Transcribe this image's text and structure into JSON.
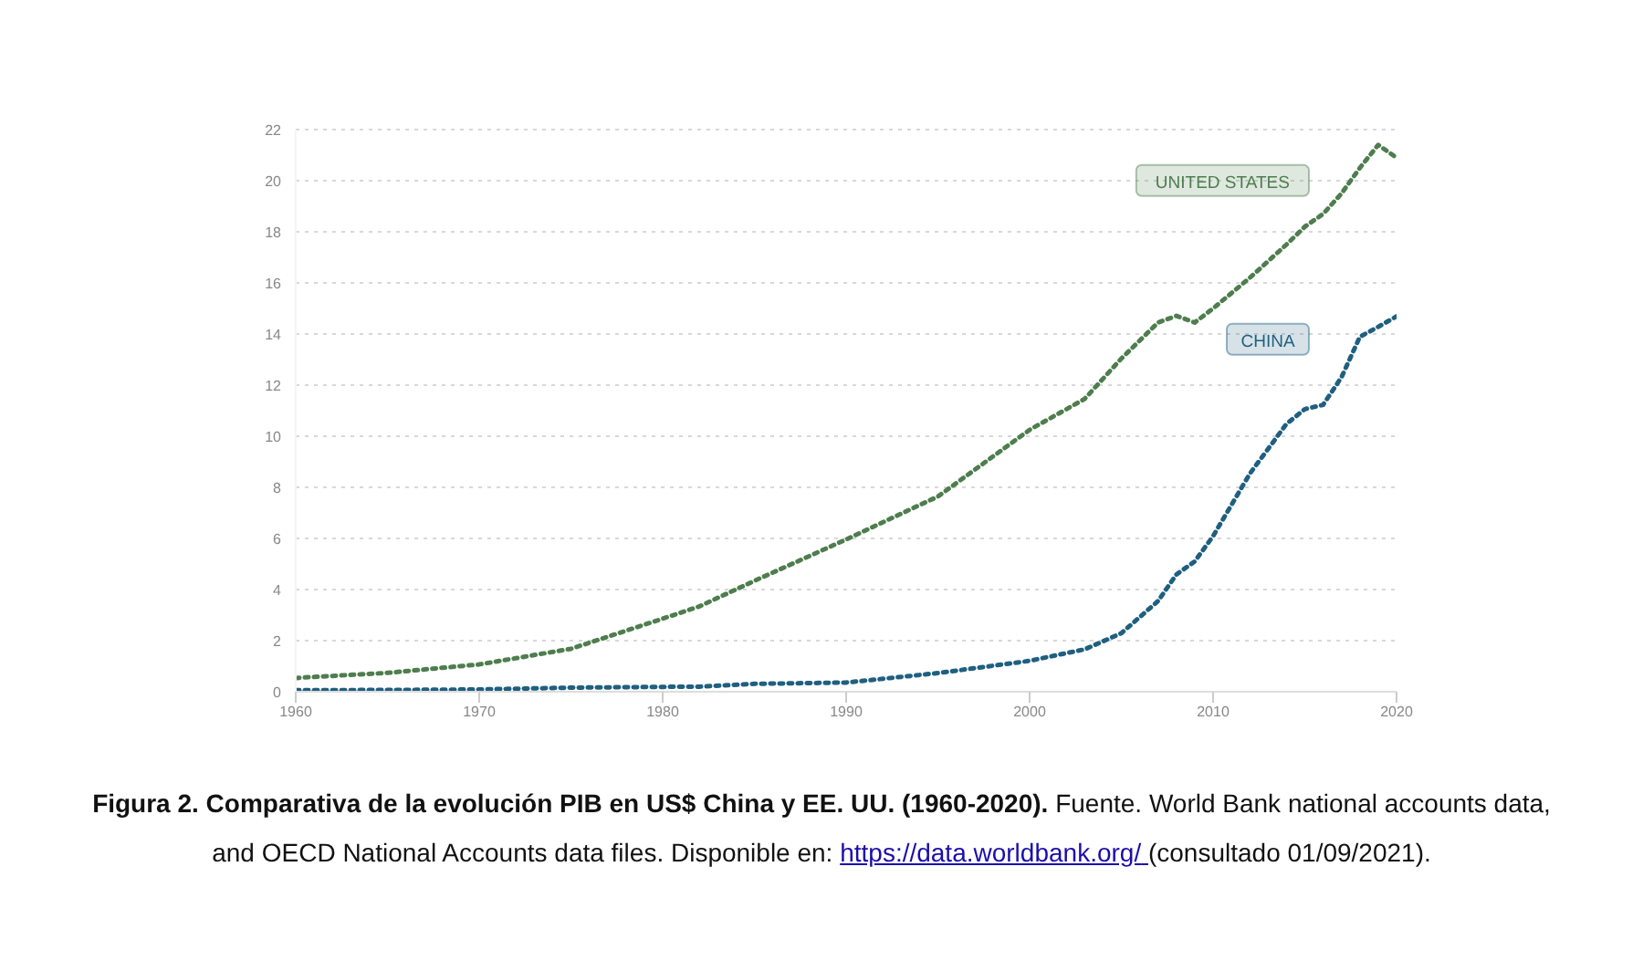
{
  "chart_data": {
    "type": "line",
    "title": "Figura 2. Comparativa de la evolución PIB en US$ China y EE. UU. (1960-2020).",
    "annotations": [
      "Fuente. World Bank national accounts data, and OECD National Accounts data files. Disponible en:",
      "https://data.worldbank.org/",
      "(consultado 01/09/2021)."
    ],
    "x": [
      1960,
      1965,
      1970,
      1975,
      1980,
      1982,
      1985,
      1990,
      1995,
      2000,
      2003,
      2005,
      2007,
      2008,
      2009,
      2010,
      2012,
      2014,
      2015,
      2016,
      2017,
      2018,
      2019,
      2020
    ],
    "series": [
      {
        "name": "UNITED STATES",
        "color": "#4e7d4e",
        "values": [
          0.54,
          0.74,
          1.07,
          1.68,
          2.86,
          3.34,
          4.34,
          5.96,
          7.64,
          10.25,
          11.46,
          13.04,
          14.45,
          14.71,
          14.45,
          15.0,
          16.2,
          17.5,
          18.2,
          18.7,
          19.5,
          20.5,
          21.4,
          20.9
        ]
      },
      {
        "name": "CHINA",
        "color": "#1f5f7f",
        "values": [
          0.06,
          0.07,
          0.09,
          0.16,
          0.19,
          0.2,
          0.31,
          0.36,
          0.73,
          1.21,
          1.66,
          2.29,
          3.55,
          4.59,
          5.1,
          6.09,
          8.53,
          10.48,
          11.06,
          11.23,
          12.31,
          13.89,
          14.28,
          14.69
        ]
      }
    ],
    "xlim": [
      1960,
      2020
    ],
    "xticks": [
      1960,
      1970,
      1980,
      1990,
      2000,
      2010,
      2020
    ],
    "ylim": [
      0,
      22
    ],
    "yticks": [
      0,
      2,
      4,
      6,
      8,
      10,
      12,
      14,
      16,
      18,
      20,
      22
    ],
    "grid": "y",
    "legend": false,
    "line_style": "dotted",
    "marker": "none"
  }
}
